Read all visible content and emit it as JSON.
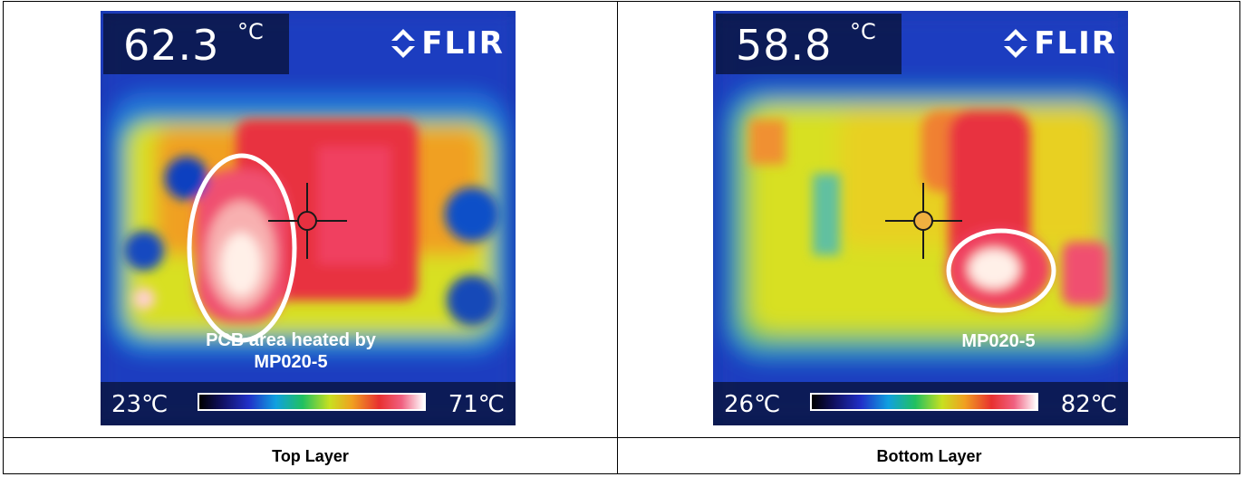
{
  "panels": [
    {
      "caption": "Top Layer",
      "temperature": "62.3",
      "temperature_unit": "°C",
      "logo_text": "FLIR",
      "scale_min": "23℃",
      "scale_max": "71℃",
      "annotation_line1": "PCB area heated by",
      "annotation_line2": "MP020-5"
    },
    {
      "caption": "Bottom Layer",
      "temperature": "58.8",
      "temperature_unit": "°C",
      "logo_text": "FLIR",
      "scale_min": "26℃",
      "scale_max": "82℃",
      "annotation_line1": "MP020-5"
    }
  ],
  "colors": {
    "annotation_ellipse": "#ffffff",
    "cold": "#1030c8",
    "mid": "#e8e020",
    "hot": "#e83040"
  }
}
